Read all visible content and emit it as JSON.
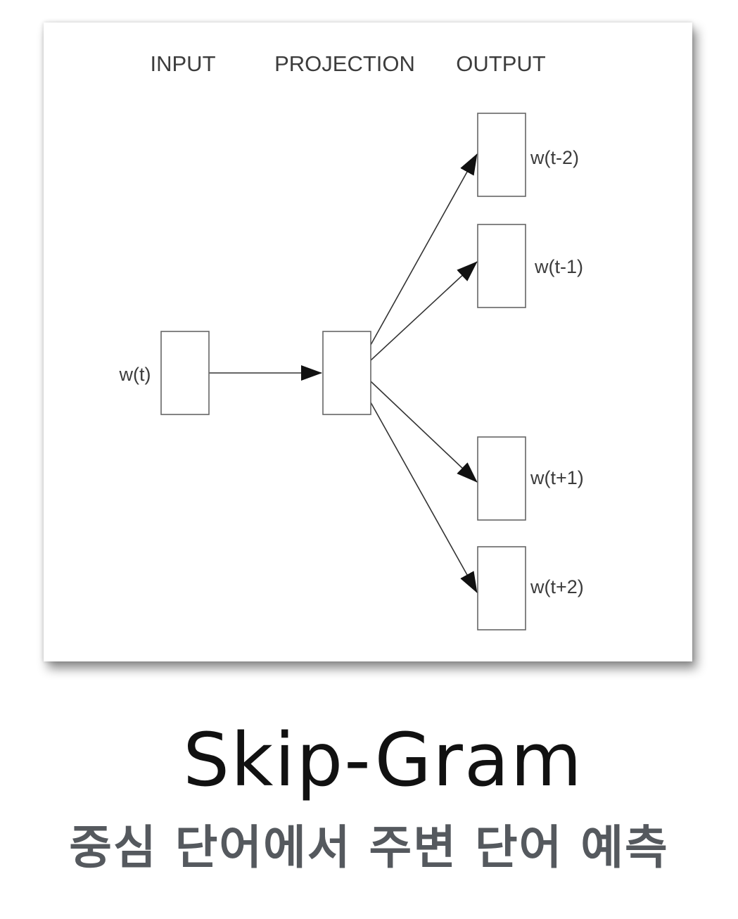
{
  "diagram": {
    "columns": {
      "input": "INPUT",
      "projection": "PROJECTION",
      "output": "OUTPUT"
    },
    "input_node": {
      "label": "w(t)"
    },
    "projection_node": {
      "label": ""
    },
    "output_nodes": [
      {
        "label": "w(t-2)"
      },
      {
        "label": "w(t-1)"
      },
      {
        "label": "w(t+1)"
      },
      {
        "label": "w(t+2)"
      }
    ]
  },
  "caption": {
    "title": "Skip-Gram",
    "subtitle": "중심 단어에서 주변 단어 예측"
  }
}
